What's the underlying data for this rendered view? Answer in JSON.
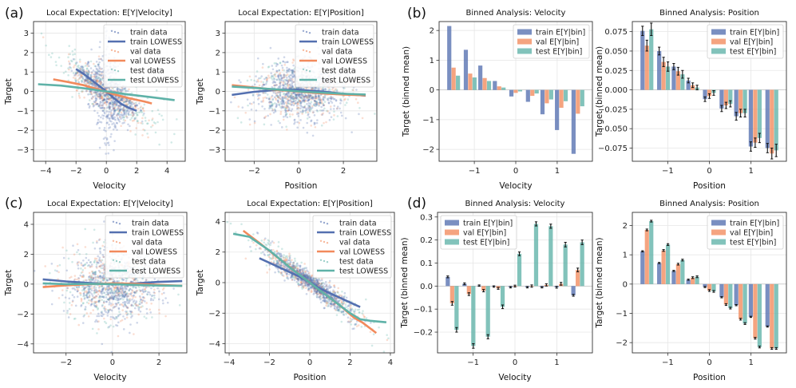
{
  "colors": {
    "train": "#5470b0",
    "val": "#f28a5c",
    "test": "#5fb2a8"
  },
  "panel_labels": [
    "(a)",
    "(b)",
    "(c)",
    "(d)"
  ],
  "chart_data": [
    {
      "type": "scatter",
      "title": "Local Expectation: E[Y|Velocity]",
      "xlabel": "Velocity",
      "ylabel": "Target",
      "xlim": [
        -4.8,
        5.2
      ],
      "ylim": [
        -3.6,
        3.6
      ],
      "xticks": [
        -4,
        -2,
        0,
        2,
        4
      ],
      "yticks": [
        -3,
        -2,
        -1,
        0,
        1,
        2,
        3
      ],
      "legend": [
        "train data",
        "train LOWESS",
        "val data",
        "val LOWESS",
        "test data",
        "test LOWESS"
      ],
      "scatter": {
        "seed": 11,
        "n": [
          700,
          280,
          280
        ],
        "xsd": [
          0.9,
          1.2,
          1.6
        ],
        "kind": "cusp",
        "noise": 0.55
      },
      "lowess": [
        {
          "series": "train",
          "x": [
            -2.0,
            -1.5,
            -1.0,
            -0.5,
            0.0,
            0.5,
            1.0,
            1.5,
            2.0
          ],
          "y": [
            1.15,
            0.9,
            0.6,
            0.3,
            0.0,
            -0.35,
            -0.65,
            -0.85,
            -1.0
          ]
        },
        {
          "series": "val",
          "x": [
            -3.5,
            -2.5,
            -1.5,
            -0.5,
            0.0,
            0.5,
            1.5,
            2.5,
            3.0
          ],
          "y": [
            0.62,
            0.48,
            0.32,
            0.1,
            -0.02,
            -0.15,
            -0.35,
            -0.52,
            -0.62
          ]
        },
        {
          "series": "test",
          "x": [
            -4.5,
            -3.0,
            -1.5,
            0.0,
            1.5,
            3.0,
            4.5
          ],
          "y": [
            0.37,
            0.3,
            0.16,
            0.0,
            -0.16,
            -0.3,
            -0.45
          ]
        }
      ]
    },
    {
      "type": "scatter",
      "title": "Local Expectation: E[Y|Position]",
      "xlabel": "Position",
      "ylabel": "Target",
      "xlim": [
        -3.3,
        3.5
      ],
      "ylim": [
        -3.6,
        3.6
      ],
      "xticks": [
        -2,
        0,
        2
      ],
      "yticks": [
        -3,
        -2,
        -1,
        0,
        1,
        2,
        3
      ],
      "legend": [
        "train data",
        "train LOWESS",
        "val data",
        "val LOWESS",
        "test data",
        "test LOWESS"
      ],
      "scatter": {
        "seed": 23,
        "n": [
          700,
          280,
          280
        ],
        "xsd": [
          1.0,
          1.0,
          1.0
        ],
        "kind": "flat",
        "noise": 0.75
      },
      "lowess": [
        {
          "series": "train",
          "x": [
            -3.0,
            -2.0,
            -1.0,
            0.0,
            1.0,
            2.0,
            3.0
          ],
          "y": [
            -0.18,
            -0.02,
            0.08,
            0.08,
            0.0,
            -0.12,
            -0.22
          ]
        },
        {
          "series": "val",
          "x": [
            -3.0,
            -2.0,
            -1.0,
            0.0,
            1.0,
            2.0,
            3.0
          ],
          "y": [
            0.32,
            0.2,
            0.08,
            -0.01,
            -0.1,
            -0.16,
            -0.2
          ]
        },
        {
          "series": "test",
          "x": [
            -3.0,
            -2.0,
            -1.0,
            0.0,
            1.0,
            2.0,
            3.0
          ],
          "y": [
            0.25,
            0.18,
            0.1,
            0.0,
            -0.06,
            -0.12,
            -0.16
          ]
        }
      ]
    },
    {
      "type": "bar",
      "title": "Binned Analysis: Velocity",
      "xlabel": "Velocity",
      "ylabel": "Target (binned mean)",
      "xlim": [
        -1.85,
        1.85
      ],
      "ylim": [
        -2.4,
        2.3
      ],
      "xticks": [
        -1,
        0,
        1
      ],
      "yticks": [
        -2,
        -1,
        0,
        1,
        2
      ],
      "categories": [
        -1.5,
        -1.1,
        -0.75,
        -0.4,
        0.0,
        0.4,
        0.75,
        1.1,
        1.5
      ],
      "series": [
        {
          "name": "train E[Y|bin]",
          "values": [
            2.15,
            1.35,
            0.82,
            0.3,
            -0.22,
            -0.4,
            -0.82,
            -1.35,
            -2.15
          ]
        },
        {
          "name": "val E[Y|bin]",
          "values": [
            0.75,
            0.55,
            0.4,
            0.12,
            -0.1,
            -0.2,
            -0.45,
            -0.6,
            -0.8
          ]
        },
        {
          "name": "test E[Y|bin]",
          "values": [
            0.48,
            0.42,
            0.3,
            0.08,
            -0.05,
            -0.12,
            -0.32,
            -0.38,
            -0.55
          ]
        }
      ],
      "errors": [
        [
          0,
          0,
          0,
          0,
          0,
          0,
          0,
          0,
          0
        ],
        [
          0,
          0,
          0,
          0,
          0,
          0,
          0,
          0,
          0
        ],
        [
          0,
          0,
          0,
          0,
          0,
          0,
          0,
          0,
          0
        ]
      ],
      "legend_pos": "top-right"
    },
    {
      "type": "bar",
      "title": "Binned Analysis: Position",
      "xlabel": "Position",
      "ylabel": "Target (binned mean)",
      "xlim": [
        -1.85,
        1.85
      ],
      "ylim": [
        -0.092,
        0.088
      ],
      "xticks": [
        -1,
        0,
        1
      ],
      "yticks": [
        -0.075,
        -0.05,
        -0.025,
        0.0,
        0.025,
        0.05,
        0.075
      ],
      "ytick_labels": [
        "−0.075",
        "−0.050",
        "−0.025",
        "0.000",
        "0.025",
        "0.050",
        "0.075"
      ],
      "categories": [
        -1.5,
        -1.1,
        -0.75,
        -0.4,
        0.0,
        0.4,
        0.75,
        1.1,
        1.5
      ],
      "series": [
        {
          "name": "train E[Y|bin]",
          "values": [
            0.076,
            0.05,
            0.03,
            0.012,
            -0.012,
            -0.024,
            -0.034,
            -0.073,
            -0.075
          ]
        },
        {
          "name": "val E[Y|bin]",
          "values": [
            0.057,
            0.036,
            0.024,
            0.006,
            -0.008,
            -0.02,
            -0.03,
            -0.068,
            -0.082
          ]
        },
        {
          "name": "test E[Y|bin]",
          "values": [
            0.078,
            0.03,
            0.02,
            0.003,
            -0.004,
            -0.018,
            -0.03,
            -0.062,
            -0.078
          ]
        }
      ],
      "errors": [
        [
          0.006,
          0.005,
          0.004,
          0.003,
          0.003,
          0.004,
          0.005,
          0.006,
          0.006
        ],
        [
          0.007,
          0.006,
          0.005,
          0.003,
          0.003,
          0.004,
          0.005,
          0.006,
          0.007
        ],
        [
          0.008,
          0.006,
          0.005,
          0.003,
          0.003,
          0.004,
          0.005,
          0.006,
          0.008
        ]
      ],
      "legend_pos": "top-right"
    },
    {
      "type": "scatter",
      "title": "Local Expectation: E[Y|Velocity]",
      "xlabel": "Velocity",
      "ylabel": "Target",
      "xlim": [
        -3.4,
        3.2
      ],
      "ylim": [
        -4.6,
        4.8
      ],
      "xticks": [
        -2,
        0,
        2
      ],
      "yticks": [
        -4,
        -2,
        0,
        2,
        4
      ],
      "legend": [
        "train data",
        "train LOWESS",
        "val data",
        "val LOWESS",
        "test data",
        "test LOWESS"
      ],
      "scatter": {
        "seed": 37,
        "n": [
          650,
          300,
          300
        ],
        "xsd": [
          1.0,
          1.0,
          1.0
        ],
        "kind": "flat",
        "noise": 1.25
      },
      "lowess": [
        {
          "series": "train",
          "x": [
            -3.0,
            -2.0,
            -1.0,
            0.0,
            1.0,
            2.0,
            3.0
          ],
          "y": [
            0.32,
            0.18,
            0.08,
            -0.02,
            0.05,
            0.15,
            0.2
          ]
        },
        {
          "series": "val",
          "x": [
            -3.0,
            -2.0,
            -1.0,
            0.0,
            1.0,
            2.0,
            3.0
          ],
          "y": [
            -0.2,
            -0.08,
            0.0,
            0.05,
            0.02,
            -0.05,
            -0.12
          ]
        },
        {
          "series": "test",
          "x": [
            -3.0,
            -2.0,
            -1.0,
            0.0,
            1.0,
            2.0,
            3.0
          ],
          "y": [
            0.05,
            0.0,
            0.02,
            0.0,
            -0.05,
            -0.1,
            -0.12
          ]
        }
      ]
    },
    {
      "type": "scatter",
      "title": "Local Expectation: E[Y|Position]",
      "xlabel": "Position",
      "ylabel": "Target",
      "xlim": [
        -4.2,
        4.2
      ],
      "ylim": [
        -4.6,
        4.6
      ],
      "xticks": [
        -4,
        -2,
        0,
        2,
        4
      ],
      "yticks": [
        -4,
        -2,
        0,
        2,
        4
      ],
      "legend": [
        "train data",
        "train LOWESS",
        "val data",
        "val LOWESS",
        "test data",
        "test LOWESS"
      ],
      "scatter": {
        "seed": 51,
        "n": [
          650,
          300,
          300
        ],
        "xsd": [
          1.0,
          1.2,
          1.5
        ],
        "kind": "slope",
        "noise": 0.45
      },
      "lowess": [
        {
          "series": "train",
          "x": [
            -2.5,
            -1.5,
            -0.5,
            0.0,
            0.5,
            1.5,
            2.5
          ],
          "y": [
            1.6,
            1.0,
            0.38,
            0.02,
            -0.38,
            -1.0,
            -1.6
          ]
        },
        {
          "series": "val",
          "x": [
            -3.3,
            -2.5,
            -1.5,
            -0.5,
            0.5,
            1.5,
            2.2,
            2.6,
            3.3
          ],
          "y": [
            3.4,
            2.6,
            1.55,
            0.5,
            -0.5,
            -1.5,
            -2.3,
            -2.6,
            -3.3
          ]
        },
        {
          "series": "test",
          "x": [
            -3.8,
            -3.0,
            -2.0,
            -1.0,
            0.0,
            1.0,
            2.0,
            2.5,
            3.0,
            3.8
          ],
          "y": [
            3.2,
            3.0,
            2.1,
            1.0,
            0.0,
            -1.0,
            -2.0,
            -2.4,
            -2.5,
            -2.6
          ]
        }
      ]
    },
    {
      "type": "bar",
      "title": "Binned Analysis: Velocity",
      "xlabel": "Velocity",
      "ylabel": "Target (binned mean)",
      "xlim": [
        -1.85,
        1.85
      ],
      "ylim": [
        -0.29,
        0.32
      ],
      "xticks": [
        -1,
        0,
        1
      ],
      "yticks": [
        -0.2,
        -0.1,
        0.0,
        0.1,
        0.2,
        0.3
      ],
      "ytick_labels": [
        "−0.2",
        "−0.1",
        "0.0",
        "0.1",
        "0.2",
        "0.3"
      ],
      "categories": [
        -1.5,
        -1.1,
        -0.75,
        -0.4,
        0.0,
        0.4,
        0.75,
        1.1,
        1.5
      ],
      "series": [
        {
          "name": "train E[Y|bin]",
          "values": [
            0.04,
            0.01,
            0.002,
            -0.002,
            -0.005,
            -0.005,
            -0.005,
            -0.005,
            -0.04
          ]
        },
        {
          "name": "val E[Y|bin]",
          "values": [
            -0.075,
            -0.035,
            -0.02,
            -0.01,
            0.0,
            0.0,
            0.005,
            0.01,
            0.07
          ]
        },
        {
          "name": "test E[Y|bin]",
          "values": [
            -0.19,
            -0.26,
            -0.22,
            -0.09,
            0.14,
            0.27,
            0.26,
            0.18,
            0.19
          ]
        }
      ],
      "errors": [
        [
          0.004,
          0.004,
          0.003,
          0.003,
          0.003,
          0.003,
          0.003,
          0.004,
          0.004
        ],
        [
          0.008,
          0.006,
          0.005,
          0.004,
          0.004,
          0.005,
          0.005,
          0.006,
          0.008
        ],
        [
          0.01,
          0.01,
          0.009,
          0.008,
          0.008,
          0.009,
          0.009,
          0.01,
          0.01
        ]
      ],
      "legend_pos": "top-left"
    },
    {
      "type": "bar",
      "title": "Binned Analysis: Position",
      "xlabel": "Position",
      "ylabel": "Target (binned mean)",
      "xlim": [
        -1.85,
        1.85
      ],
      "ylim": [
        -2.35,
        2.45
      ],
      "xticks": [
        -1,
        0,
        1
      ],
      "yticks": [
        -2,
        -1,
        0,
        1,
        2
      ],
      "categories": [
        -1.5,
        -1.1,
        -0.75,
        -0.4,
        0.0,
        0.4,
        0.75,
        1.1,
        1.5
      ],
      "series": [
        {
          "name": "train E[Y|bin]",
          "values": [
            1.12,
            0.72,
            0.45,
            0.15,
            -0.1,
            -0.45,
            -0.72,
            -1.12,
            -1.45
          ]
        },
        {
          "name": "val E[Y|bin]",
          "values": [
            1.85,
            1.15,
            0.68,
            0.22,
            -0.22,
            -0.7,
            -1.2,
            -1.85,
            -2.2
          ]
        },
        {
          "name": "test E[Y|bin]",
          "values": [
            2.15,
            1.35,
            0.82,
            0.25,
            -0.25,
            -0.82,
            -1.35,
            -2.15,
            -2.2
          ]
        }
      ],
      "errors": [
        [
          0.02,
          0.02,
          0.02,
          0.02,
          0.02,
          0.02,
          0.02,
          0.02,
          0.02
        ],
        [
          0.03,
          0.03,
          0.03,
          0.03,
          0.03,
          0.03,
          0.03,
          0.03,
          0.03
        ],
        [
          0.03,
          0.03,
          0.03,
          0.03,
          0.03,
          0.03,
          0.03,
          0.03,
          0.03
        ]
      ],
      "legend_pos": "top-right"
    }
  ]
}
